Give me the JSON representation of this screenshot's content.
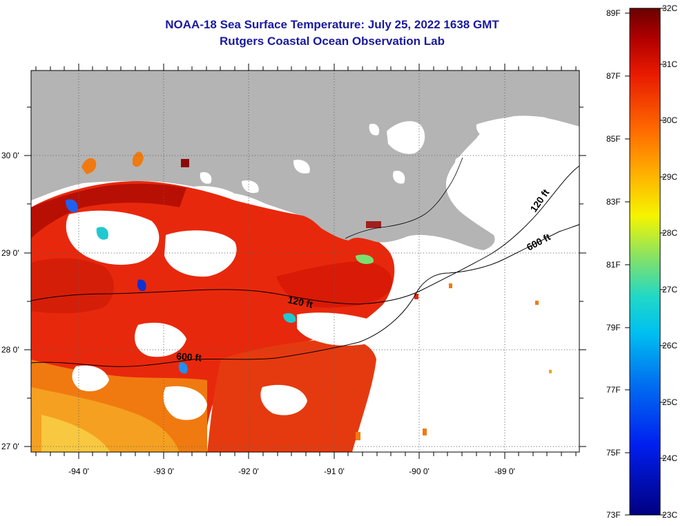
{
  "title": {
    "line1": "NOAA-18 Sea Surface Temperature:  July 25, 2022 1638 GMT",
    "line2": "Rutgers Coastal Ocean Observation Lab"
  },
  "map": {
    "lon_labels": [
      "-94 0'",
      "-93 0'",
      "-92 0'",
      "-91 0'",
      "-90 0'",
      "-89 0'"
    ],
    "lat_labels": [
      "30 0'",
      "29 0'",
      "28 0'",
      "27 0'"
    ],
    "contour_labels": [
      "120 ft",
      "600 ft",
      "120 ft",
      "600 ft"
    ],
    "colors": {
      "land": "#b4b4b4",
      "no_data": "#ffffff",
      "grid": "#606060"
    }
  },
  "colorbar": {
    "fahrenheit_labels": [
      "89F",
      "87F",
      "85F",
      "83F",
      "81F",
      "79F",
      "77F",
      "75F",
      "73F"
    ],
    "celsius_labels": [
      "32C",
      "31C",
      "30C",
      "29C",
      "28C",
      "27C",
      "26C",
      "25C",
      "24C",
      "23C"
    ]
  }
}
